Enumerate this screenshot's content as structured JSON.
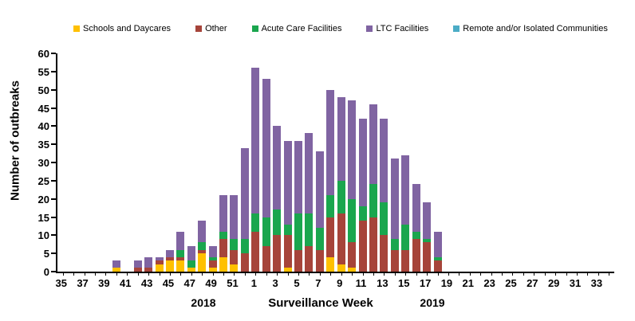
{
  "chart": {
    "y_axis": {
      "title": "Number of outbreaks",
      "min": 0,
      "max": 60,
      "step": 5
    },
    "x_axis": {
      "title": "Surveillance Week",
      "year_left": "2018",
      "year_right": "2019",
      "label_every": 2
    },
    "legend_position": "top"
  },
  "chart_data": {
    "type": "bar",
    "stacked": true,
    "title": "",
    "xlabel": "Surveillance Week",
    "ylabel": "Number of outbreaks",
    "ylim": [
      0,
      60
    ],
    "grid": false,
    "categories": [
      "35",
      "36",
      "37",
      "38",
      "39",
      "40",
      "41",
      "42",
      "43",
      "44",
      "45",
      "46",
      "47",
      "48",
      "49",
      "50",
      "51",
      "52",
      "1",
      "2",
      "3",
      "4",
      "5",
      "6",
      "7",
      "8",
      "9",
      "10",
      "11",
      "12",
      "13",
      "14",
      "15",
      "16",
      "17",
      "18",
      "19",
      "20",
      "21",
      "22",
      "23",
      "24",
      "25",
      "26",
      "27",
      "28",
      "29",
      "30",
      "31",
      "32",
      "33",
      "34"
    ],
    "series": [
      {
        "name": "Schools and Daycares",
        "color": "#FFC000",
        "values": [
          0,
          0,
          0,
          0,
          0,
          1,
          0,
          0,
          0,
          2,
          3,
          3,
          1,
          5,
          1,
          4,
          2,
          0,
          0,
          0,
          0,
          1,
          0,
          0,
          0,
          4,
          2,
          1,
          0,
          0,
          0,
          0,
          0,
          0,
          0,
          0,
          0,
          0,
          0,
          0,
          0,
          0,
          0,
          0,
          0,
          0,
          0,
          0,
          0,
          0,
          0,
          0
        ]
      },
      {
        "name": "Other",
        "color": "#A6443A",
        "values": [
          0,
          0,
          0,
          0,
          0,
          0,
          0,
          1,
          1,
          1,
          1,
          1,
          0,
          1,
          2,
          5,
          4,
          5,
          11,
          7,
          10,
          9,
          6,
          7,
          6,
          11,
          14,
          7,
          14,
          15,
          10,
          6,
          6,
          9,
          8,
          3,
          0,
          0,
          0,
          0,
          0,
          0,
          0,
          0,
          0,
          0,
          0,
          0,
          0,
          0,
          0,
          0
        ]
      },
      {
        "name": "Acute Care Facilities",
        "color": "#1AA64E",
        "values": [
          0,
          0,
          0,
          0,
          0,
          0,
          0,
          0,
          0,
          0,
          0,
          2,
          2,
          2,
          1,
          2,
          3,
          4,
          5,
          8,
          7,
          3,
          10,
          9,
          6,
          6,
          9,
          12,
          4,
          9,
          9,
          3,
          7,
          2,
          1,
          1,
          0,
          0,
          0,
          0,
          0,
          0,
          0,
          0,
          0,
          0,
          0,
          0,
          0,
          0,
          0,
          0
        ]
      },
      {
        "name": "LTC Facilities",
        "color": "#8064A2",
        "values": [
          0,
          0,
          0,
          0,
          0,
          2,
          0,
          2,
          3,
          1,
          2,
          5,
          4,
          6,
          3,
          10,
          12,
          25,
          40,
          38,
          23,
          23,
          20,
          22,
          21,
          29,
          23,
          27,
          24,
          22,
          23,
          22,
          19,
          13,
          10,
          7,
          0,
          0,
          0,
          0,
          0,
          0,
          0,
          0,
          0,
          0,
          0,
          0,
          0,
          0,
          0,
          0
        ]
      },
      {
        "name": "Remote and/or Isolated Communities",
        "color": "#4BACC6",
        "values": [
          0,
          0,
          0,
          0,
          0,
          0,
          0,
          0,
          0,
          0,
          0,
          0,
          0,
          0,
          0,
          0,
          0,
          0,
          0,
          0,
          0,
          0,
          0,
          0,
          0,
          0,
          0,
          0,
          0,
          0,
          0,
          0,
          0,
          0,
          0,
          0,
          0,
          0,
          0,
          0,
          0,
          0,
          0,
          0,
          0,
          0,
          0,
          0,
          0,
          0,
          0,
          0
        ]
      }
    ]
  }
}
